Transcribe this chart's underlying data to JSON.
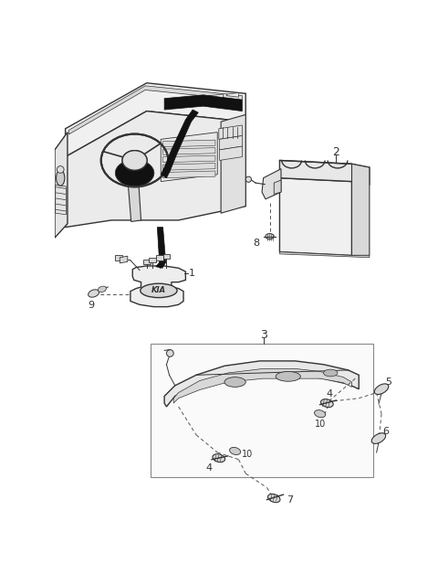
{
  "background_color": "#ffffff",
  "fig_width": 4.8,
  "fig_height": 6.28,
  "dpi": 100,
  "line_color": "#333333",
  "dash_color": "#555555",
  "fill_light": "#f0f0f0",
  "fill_mid": "#d8d8d8",
  "fill_dark": "#aaaaaa",
  "fill_black": "#111111"
}
